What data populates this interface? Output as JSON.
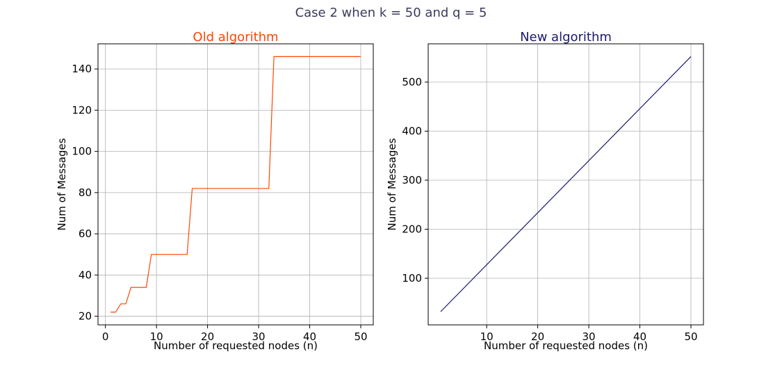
{
  "figure": {
    "suptitle": "Case 2 when k = 50 and q = 5"
  },
  "chart_data": [
    {
      "type": "line",
      "title": "Old algorithm",
      "title_color": "#ff4500",
      "line_color": "#ff4500",
      "xlabel": "Number of requested nodes (n)",
      "ylabel": "Num of Messages",
      "xlim": [
        -1.45,
        52.45
      ],
      "ylim": [
        15.8,
        152.2
      ],
      "xticks": [
        0,
        10,
        20,
        30,
        40,
        50
      ],
      "yticks": [
        20,
        40,
        60,
        80,
        100,
        120,
        140
      ],
      "grid": true,
      "series": [
        {
          "x": [
            1,
            2,
            3,
            4,
            5,
            6,
            7,
            8,
            9,
            10,
            11,
            12,
            13,
            14,
            15,
            16,
            17,
            18,
            19,
            20,
            21,
            22,
            23,
            24,
            25,
            26,
            27,
            28,
            29,
            30,
            31,
            32,
            33,
            34,
            35,
            36,
            37,
            38,
            39,
            40,
            41,
            42,
            43,
            44,
            45,
            46,
            47,
            48,
            49,
            50
          ],
          "y": [
            22,
            22,
            26,
            26,
            34,
            34,
            34,
            34,
            50,
            50,
            50,
            50,
            50,
            50,
            50,
            50,
            82,
            82,
            82,
            82,
            82,
            82,
            82,
            82,
            82,
            82,
            82,
            82,
            82,
            82,
            82,
            82,
            146,
            146,
            146,
            146,
            146,
            146,
            146,
            146,
            146,
            146,
            146,
            146,
            146,
            146,
            146,
            146,
            146,
            146
          ]
        }
      ]
    },
    {
      "type": "line",
      "title": "New algorithm",
      "title_color": "#191970",
      "line_color": "#191970",
      "xlabel": "Number of requested nodes (n)",
      "ylabel": "Num of Messages",
      "xlim": [
        -1.45,
        52.45
      ],
      "ylim": [
        5.0,
        578.0
      ],
      "xticks": [
        10,
        20,
        30,
        40,
        50
      ],
      "yticks": [
        100,
        200,
        300,
        400,
        500
      ],
      "grid": true,
      "series": [
        {
          "x": [
            1,
            50
          ],
          "y": [
            32,
            552
          ]
        }
      ]
    }
  ]
}
